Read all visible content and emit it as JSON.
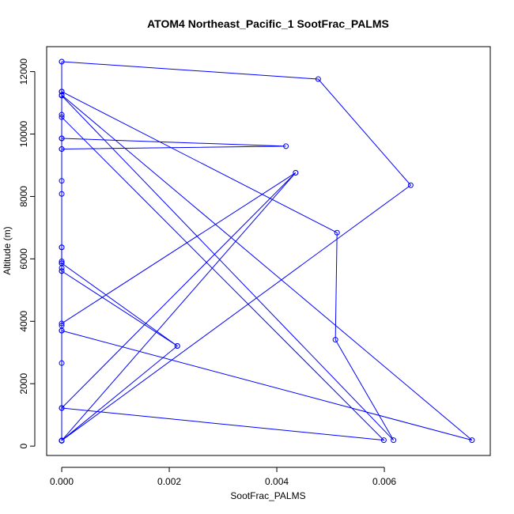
{
  "chart_data": {
    "type": "line",
    "title": "ATOM4 Northeast_Pacific_1 SootFrac_PALMS",
    "xlabel": "SootFrac_PALMS",
    "ylabel": "Altitude (m)",
    "xlim": [
      -0.00028,
      0.00797
    ],
    "ylim": [
      -300,
      12800
    ],
    "x_ticks": [
      0.0,
      0.002,
      0.004,
      0.006
    ],
    "x_tick_labels": [
      "0.000",
      "0.002",
      "0.004",
      "0.006"
    ],
    "y_ticks": [
      0,
      2000,
      4000,
      6000,
      8000,
      10000,
      12000
    ],
    "y_tick_labels": [
      "0",
      "2000",
      "4000",
      "6000",
      "8000",
      "10000",
      "12000"
    ],
    "series_color": "#0000ff",
    "series": [
      {
        "points": [
          {
            "x": 0.0,
            "y": 12320
          },
          {
            "x": 0.0,
            "y": 11360
          },
          {
            "x": 0.0,
            "y": 11360
          },
          {
            "x": 0.0,
            "y": 10620
          },
          {
            "x": 0.0,
            "y": 9860
          },
          {
            "x": 0.0,
            "y": 9520
          },
          {
            "x": 0.0,
            "y": 8500
          },
          {
            "x": 0.0,
            "y": 8080
          },
          {
            "x": 0.0,
            "y": 6370
          },
          {
            "x": 0.0,
            "y": 5920
          },
          {
            "x": 0.0,
            "y": 5710
          },
          {
            "x": 0.0,
            "y": 5610
          },
          {
            "x": 0.0,
            "y": 3860
          },
          {
            "x": 0.0,
            "y": 3700
          },
          {
            "x": 0.0,
            "y": 2660
          },
          {
            "x": 0.0,
            "y": 1220
          },
          {
            "x": 0.0,
            "y": 180
          },
          {
            "x": 0.0,
            "y": 170
          }
        ]
      },
      {
        "points": [
          {
            "x": 0.0,
            "y": 12320
          },
          {
            "x": 0.00477,
            "y": 11760
          },
          {
            "x": 0.00649,
            "y": 8360
          },
          {
            "x": 0.0,
            "y": 180
          },
          {
            "x": 0.00215,
            "y": 3210
          },
          {
            "x": 0.0,
            "y": 5610
          },
          {
            "x": 0.0,
            "y": 5860
          },
          {
            "x": 0.0,
            "y": 6370
          }
        ]
      },
      {
        "points": [
          {
            "x": 0.0,
            "y": 11360
          },
          {
            "x": 0.00512,
            "y": 6840
          },
          {
            "x": 0.00509,
            "y": 3410
          },
          {
            "x": 0.00617,
            "y": 190
          },
          {
            "x": 0.0,
            "y": 11230
          }
        ]
      },
      {
        "points": [
          {
            "x": 0.0,
            "y": 10540
          },
          {
            "x": 0.00599,
            "y": 190
          },
          {
            "x": 0.0,
            "y": 1220
          },
          {
            "x": 0.00435,
            "y": 8760
          },
          {
            "x": 0.0,
            "y": 180
          }
        ]
      },
      {
        "points": [
          {
            "x": 0.0,
            "y": 9860
          },
          {
            "x": 0.00417,
            "y": 9610
          },
          {
            "x": 0.0,
            "y": 9520
          }
        ]
      },
      {
        "points": [
          {
            "x": 0.0,
            "y": 11250
          },
          {
            "x": 0.00763,
            "y": 190
          },
          {
            "x": 0.0,
            "y": 3700
          }
        ]
      },
      {
        "points": [
          {
            "x": 0.0,
            "y": 3930
          },
          {
            "x": 0.00435,
            "y": 8760
          }
        ]
      },
      {
        "points": [
          {
            "x": 0.0,
            "y": 5860
          },
          {
            "x": 0.00215,
            "y": 3210
          }
        ]
      }
    ]
  }
}
